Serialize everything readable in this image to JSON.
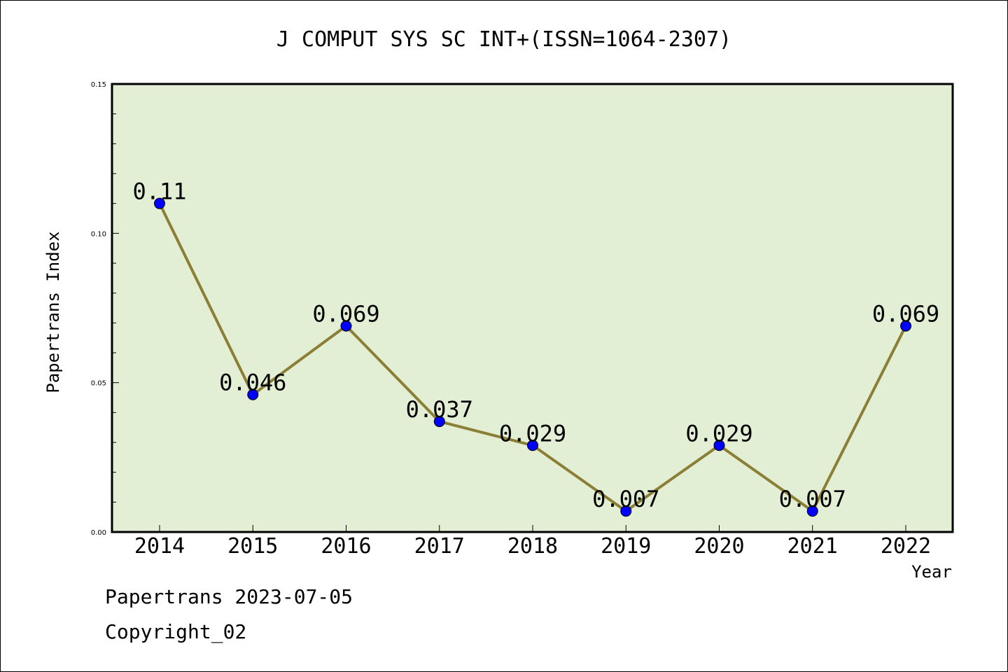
{
  "chart_data": {
    "type": "line",
    "title": "J COMPUT SYS SC INT+(ISSN=1064-2307)",
    "xlabel": "Year",
    "ylabel": "Papertrans Index",
    "categories": [
      "2014",
      "2015",
      "2016",
      "2017",
      "2018",
      "2019",
      "2020",
      "2021",
      "2022"
    ],
    "values": [
      0.11,
      0.046,
      0.069,
      0.037,
      0.029,
      0.007,
      0.029,
      0.007,
      0.069
    ],
    "data_labels": [
      "0.11",
      "0.046",
      "0.069",
      "0.037",
      "0.029",
      "0.007",
      "0.029",
      "0.007",
      "0.069"
    ],
    "ylim": [
      0,
      0.15
    ],
    "yticks": [
      0.0,
      0.05,
      0.1,
      0.15
    ],
    "ytick_labels": [
      "0.00",
      "0.05",
      "0.10",
      "0.15"
    ],
    "line_color": "#8b7e35",
    "marker_color": "#0000ff",
    "plot_bg": "#e2efd4",
    "grid": false
  },
  "footer": {
    "line1": "Papertrans 2023-07-05",
    "line2": "Copyright_02"
  }
}
